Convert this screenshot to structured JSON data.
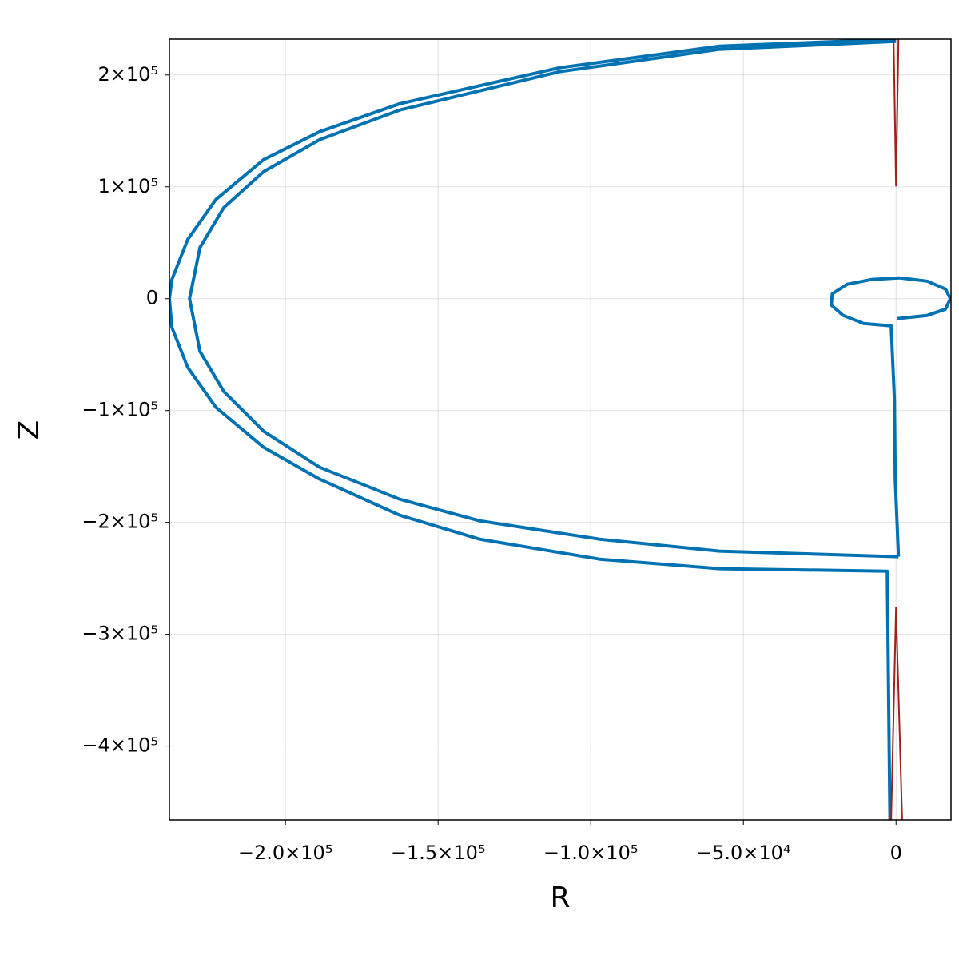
{
  "chart_data": {
    "type": "line",
    "x_label": "R",
    "y_label": "Z",
    "grid": true,
    "xlim": [
      -238000,
      18000
    ],
    "ylim": [
      -466000,
      232000
    ],
    "xticks": [
      {
        "value": -200000,
        "label": "−2.0×10⁵"
      },
      {
        "value": -150000,
        "label": "−1.5×10⁵"
      },
      {
        "value": -100000,
        "label": "−1.0×10⁵"
      },
      {
        "value": -50000,
        "label": "−5.0×10⁴"
      },
      0
    ],
    "yticks": [
      {
        "value": 200000,
        "label": "2×10⁵"
      },
      {
        "value": 100000,
        "label": "1×10⁵"
      },
      0,
      {
        "value": -100000,
        "label": "−1×10⁵"
      },
      {
        "value": -200000,
        "label": "−2×10⁵"
      },
      {
        "value": -300000,
        "label": "−3×10⁵"
      },
      {
        "value": -400000,
        "label": "−4×10⁵"
      }
    ],
    "series": [
      {
        "color": "#0072b2",
        "line_width": 4,
        "x": [
          0,
          -57900,
          -110300,
          -162600,
          -188800,
          -207100,
          -222800,
          -232000,
          -237200,
          -238000,
          -237200,
          -232000,
          -222800,
          -207100,
          -188800,
          -162600,
          -136400,
          -97100,
          -57900,
          -2900,
          -2000
        ],
        "values": [
          232000,
          225700,
          206400,
          174300,
          149300,
          124300,
          88600,
          52900,
          17100,
          0,
          -25700,
          -61400,
          -97100,
          -132900,
          -161400,
          -193600,
          -215000,
          -232900,
          -241400,
          -243600,
          -466000
        ]
      },
      {
        "color": "#0072b2",
        "line_width": 4,
        "x": [
          0,
          -57900,
          -110300,
          -162600,
          -188800,
          -207100,
          -220200,
          -228000,
          -231400,
          -228000,
          -220200,
          -207100,
          -188800,
          -162600,
          -136400,
          -97100,
          -57900,
          800
        ],
        "values": [
          230000,
          222900,
          202900,
          168600,
          142100,
          113600,
          81400,
          45700,
          0,
          -47100,
          -82900,
          -118600,
          -150700,
          -179300,
          -198600,
          -215000,
          -225700,
          -230700
        ]
      },
      {
        "color": "#0072b2",
        "line_width": 4,
        "x": [
          800,
          -260,
          -520,
          -1600,
          -10700,
          -17300,
          -21200,
          -20900,
          -16000,
          -8100,
          1000,
          10200,
          16200,
          17800,
          16200,
          10200,
          260
        ],
        "values": [
          -230700,
          -161400,
          -90000,
          -24300,
          -22100,
          -15000,
          -5700,
          4300,
          12900,
          17100,
          18600,
          15700,
          8600,
          0,
          -9300,
          -15000,
          -17900
        ]
      },
      {
        "color": "#a11f1c",
        "line_width": 2,
        "x": [
          -800,
          0,
          800,
          null,
          -1600,
          0,
          2000
        ],
        "values": [
          232000,
          101000,
          232000,
          null,
          -466000,
          -276000,
          -466000
        ]
      }
    ]
  }
}
